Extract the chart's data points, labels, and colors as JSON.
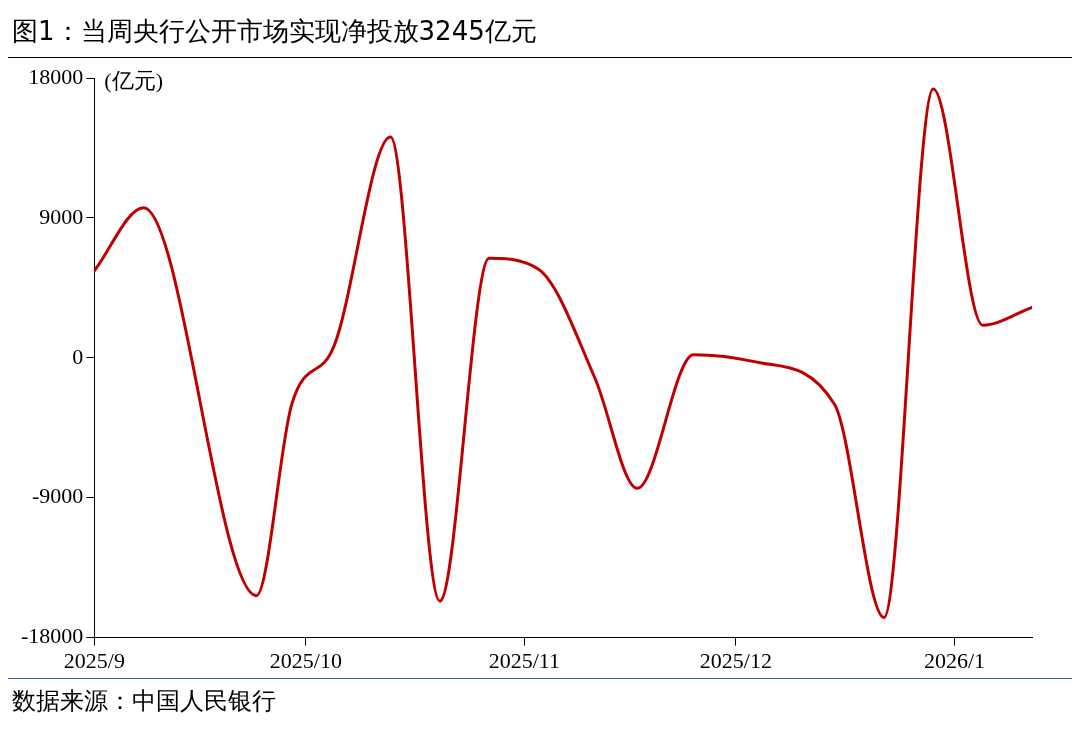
{
  "chart_data": {
    "type": "line",
    "title": "图1：当周央行公开市场实现净投放3245亿元",
    "ylabel": "(亿元)",
    "annotations": [
      "数据来源：中国人民银行"
    ],
    "x": [
      "2025-09-01",
      "2025-09-08",
      "2025-09-24",
      "2025-09-29",
      "2025-10-05",
      "2025-10-13",
      "2025-10-20",
      "2025-10-27",
      "2025-11-03",
      "2025-11-11",
      "2025-11-17",
      "2025-11-25",
      "2025-12-04",
      "2025-12-15",
      "2025-12-22",
      "2025-12-29",
      "2026-01-05",
      "2026-01-12"
    ],
    "series": [
      {
        "color": "#c00000",
        "values": [
          5600,
          9650,
          -15300,
          -3000,
          760,
          14200,
          -15650,
          6400,
          5700,
          -1300,
          -8400,
          200,
          -280,
          -3000,
          -16700,
          17300,
          2100,
          3245
        ]
      }
    ],
    "xlim": [
      "2025-09-01",
      "2026-01-12"
    ],
    "xticks": [
      {
        "value": "2025-09-01",
        "label": "2025/9"
      },
      {
        "value": "2025-10-01",
        "label": "2025/10"
      },
      {
        "value": "2025-11-01",
        "label": "2025/11"
      },
      {
        "value": "2025-12-01",
        "label": "2025/12"
      },
      {
        "value": "2026-01-01",
        "label": "2026/1"
      }
    ],
    "ylim": [
      -18000,
      18000
    ],
    "yticks": [
      -18000,
      -9000,
      0,
      9000,
      18000
    ],
    "grid": false,
    "legend": false,
    "marker": "none",
    "line_style": "solid"
  }
}
